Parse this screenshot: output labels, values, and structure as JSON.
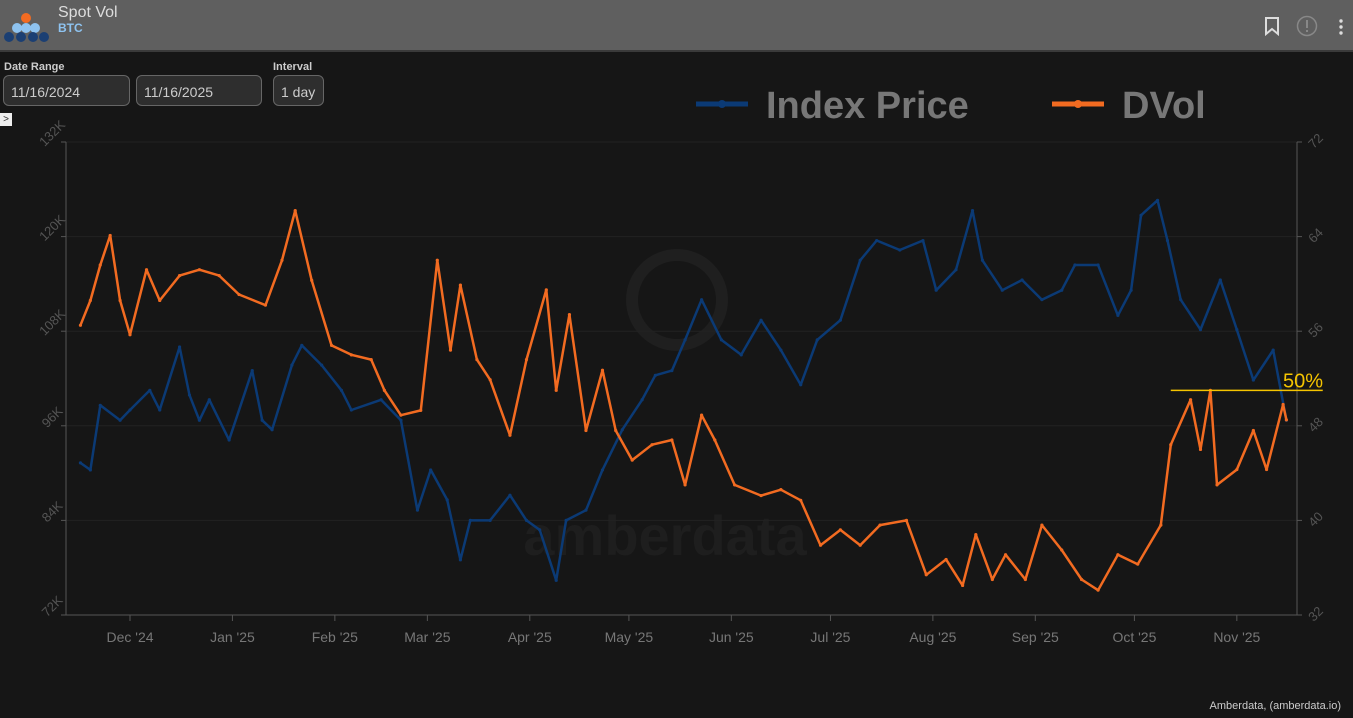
{
  "header": {
    "title": "Spot Vol",
    "subtitle": "BTC"
  },
  "controls": {
    "date_range_label": "Date Range",
    "start_date": "11/16/2024",
    "end_date": "11/16/2025",
    "interval_label": "Interval",
    "interval": "1 day"
  },
  "footer": {
    "credit": "Amberdata, (amberdata.io)"
  },
  "watermark": "amberdata",
  "colors": {
    "index_price": "#0b3a75",
    "dvol": "#f26b21",
    "annotation": "#f5c400"
  },
  "chart_data": {
    "type": "line",
    "legend": [
      "Index Price",
      "DVol"
    ],
    "legend_position": "top-right",
    "x_unit": "days since 11/16/2024",
    "xticks": [
      {
        "day": 15,
        "label": "Dec '24"
      },
      {
        "day": 46,
        "label": "Jan '25"
      },
      {
        "day": 77,
        "label": "Feb '25"
      },
      {
        "day": 105,
        "label": "Mar '25"
      },
      {
        "day": 136,
        "label": "Apr '25"
      },
      {
        "day": 166,
        "label": "May '25"
      },
      {
        "day": 197,
        "label": "Jun '25"
      },
      {
        "day": 227,
        "label": "Jul '25"
      },
      {
        "day": 258,
        "label": "Aug '25"
      },
      {
        "day": 289,
        "label": "Sep '25"
      },
      {
        "day": 319,
        "label": "Oct '25"
      },
      {
        "day": 350,
        "label": "Nov '25"
      }
    ],
    "y_left": {
      "range": [
        72,
        132
      ],
      "ticks": [
        "72K",
        "84K",
        "96K",
        "108K",
        "120K",
        "132K"
      ]
    },
    "y_right": {
      "range": [
        32,
        72
      ],
      "ticks": [
        "32",
        "40",
        "48",
        "56",
        "64",
        "72"
      ]
    },
    "annotation": {
      "label": "50%",
      "value": 51,
      "from_day": 330,
      "to_day": 376
    },
    "series": [
      {
        "name": "Index Price",
        "axis": "left",
        "unit": "K USD",
        "x": [
          0,
          3,
          6,
          12,
          15,
          21,
          24,
          30,
          33,
          36,
          39,
          45,
          52,
          55,
          58,
          64,
          67,
          73,
          79,
          82,
          91,
          97,
          102,
          106,
          111,
          115,
          118,
          124,
          130,
          135,
          139,
          144,
          147,
          153,
          158,
          164,
          170,
          174,
          179,
          183,
          188,
          194,
          200,
          206,
          212,
          218,
          223,
          230,
          236,
          241,
          248,
          255,
          259,
          265,
          270,
          273,
          279,
          285,
          291,
          297,
          301,
          308,
          314,
          318,
          321,
          326,
          329,
          333,
          339,
          345,
          350,
          355,
          361,
          365
        ],
        "y": [
          91.3,
          90.4,
          98.6,
          96.7,
          98,
          100.5,
          98,
          106,
          99.9,
          96.7,
          99.3,
          94.2,
          103,
          96.7,
          95.5,
          103.7,
          106.2,
          103.7,
          100.5,
          98,
          99.3,
          96.7,
          85.3,
          90.4,
          86.6,
          79,
          84,
          84,
          87.2,
          84,
          82.8,
          76.4,
          84,
          85.3,
          90.4,
          95.5,
          99.3,
          102.4,
          103,
          106.9,
          112,
          106.9,
          105,
          109.4,
          105.6,
          101.2,
          106.9,
          109.4,
          117,
          119.5,
          118.3,
          119.5,
          113.2,
          115.8,
          123.3,
          117,
          113.2,
          114.5,
          112,
          113.2,
          116.4,
          116.4,
          110,
          113.2,
          122.7,
          124.6,
          119.5,
          112,
          108.2,
          114.5,
          108.2,
          101.8,
          105.6,
          96.7
        ]
      },
      {
        "name": "DVol",
        "axis": "right",
        "x": [
          0,
          3,
          6,
          9,
          12,
          15,
          20,
          24,
          30,
          36,
          42,
          48,
          56,
          61,
          65,
          70,
          76,
          82,
          88,
          92,
          97,
          103,
          108,
          112,
          115,
          120,
          124,
          130,
          135,
          141,
          144,
          148,
          153,
          158,
          162,
          167,
          173,
          179,
          183,
          188,
          192,
          198,
          206,
          212,
          218,
          224,
          230,
          236,
          242,
          250,
          256,
          262,
          267,
          271,
          276,
          280,
          286,
          291,
          297,
          303,
          308,
          314,
          320,
          327,
          330,
          336,
          339,
          342,
          344,
          350,
          355,
          359,
          364,
          365
        ],
        "y": [
          56.5,
          58.6,
          61.6,
          64.1,
          58.6,
          55.7,
          61.2,
          58.6,
          60.7,
          61.2,
          60.7,
          59.1,
          58.2,
          62,
          66.2,
          60.3,
          54.8,
          54,
          53.6,
          51,
          48.9,
          49.3,
          62,
          54.4,
          59.9,
          53.6,
          51.9,
          47.2,
          53.6,
          59.5,
          51,
          57.4,
          47.6,
          52.7,
          47.6,
          45.1,
          46.4,
          46.8,
          43,
          48.9,
          46.8,
          43,
          42.1,
          42.6,
          41.7,
          37.9,
          39.2,
          37.9,
          39.6,
          40,
          35.4,
          36.7,
          34.5,
          38.8,
          35,
          37.1,
          35,
          39.6,
          37.5,
          35,
          34.1,
          37.1,
          36.3,
          39.6,
          46.4,
          50.2,
          46,
          51,
          43,
          44.3,
          47.6,
          44.3,
          49.8,
          48.5
        ]
      }
    ]
  }
}
